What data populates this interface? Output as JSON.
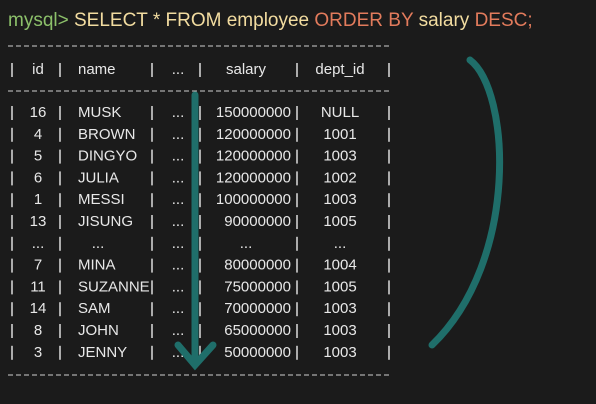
{
  "prompt": "mysql>",
  "command": [
    "SELECT * FROM employee",
    "ORDER BY",
    "salary",
    "DESC;"
  ],
  "table": {
    "header": [
      "id",
      "name",
      "...",
      "salary",
      "dept_id"
    ],
    "rows": [
      [
        "16",
        "MUSK",
        "...",
        "150000000",
        "NULL"
      ],
      [
        "4",
        "BROWN",
        "...",
        "120000000",
        "1001"
      ],
      [
        "5",
        "DINGYO",
        "...",
        "120000000",
        "1003"
      ],
      [
        "6",
        "JULIA",
        "...",
        "120000000",
        "1002"
      ],
      [
        "1",
        "MESSI",
        "...",
        "100000000",
        "1003"
      ],
      [
        "13",
        "JISUNG",
        "...",
        "90000000",
        "1005"
      ],
      [
        "...",
        "...",
        "...",
        "...",
        "..."
      ],
      [
        "7",
        "MINA",
        "...",
        "80000000",
        "1004"
      ],
      [
        "11",
        "SUZANNE",
        "...",
        "75000000",
        "1005"
      ],
      [
        "14",
        "SAM",
        "...",
        "70000000",
        "1003"
      ],
      [
        "8",
        "JOHN",
        "...",
        "65000000",
        "1003"
      ],
      [
        "3",
        "JENNY",
        "...",
        "50000000",
        "1003"
      ]
    ]
  }
}
